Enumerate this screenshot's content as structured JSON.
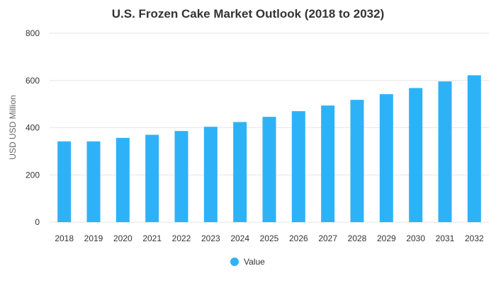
{
  "chart_data": {
    "type": "bar",
    "title": "U.S. Frozen Cake Market Outlook (2018 to 2032)",
    "xlabel": "",
    "ylabel": "USD USD Million",
    "categories": [
      "2018",
      "2019",
      "2020",
      "2021",
      "2022",
      "2023",
      "2024",
      "2025",
      "2026",
      "2027",
      "2028",
      "2029",
      "2030",
      "2031",
      "2032"
    ],
    "series": [
      {
        "name": "Value",
        "values": [
          342,
          342,
          357,
          370,
          386,
          404,
          424,
          446,
          470,
          494,
          518,
          542,
          568,
          596,
          622
        ]
      }
    ],
    "ylim": [
      0,
      800
    ],
    "yticks": [
      0,
      200,
      400,
      600,
      800
    ],
    "grid": true,
    "legend_position": "bottom",
    "colors": {
      "bar": "#2eb2f7",
      "grid": "#e6e6e6"
    }
  }
}
